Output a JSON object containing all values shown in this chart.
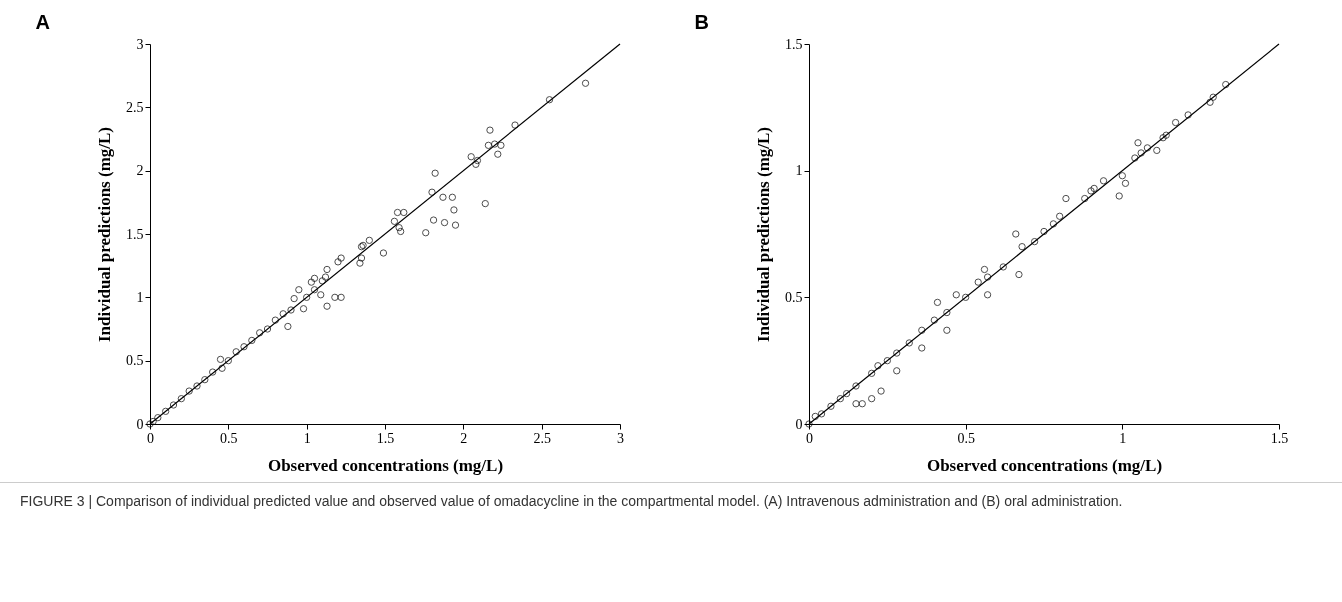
{
  "chart_data": [
    {
      "type": "scatter",
      "title": "A",
      "xlabel": "Observed concentrations (mg/L)",
      "ylabel": "Individual predictions (mg/L)",
      "xlim": [
        0,
        3
      ],
      "ylim": [
        0,
        3
      ],
      "xticks": [
        0,
        0.5,
        1,
        1.5,
        2,
        2.5,
        3
      ],
      "yticks": [
        0,
        0.5,
        1,
        1.5,
        2,
        2.5,
        3
      ],
      "annotations": [
        "FIGURE 3 | Comparison of individual predicted value and observed value of omadacycline in the compartmental model. (A) Intravenous administration and (B) oral administration."
      ],
      "series": [
        {
          "type": "scatter",
          "marker": "circle",
          "color": "#000000",
          "x": [
            2.78,
            2.55,
            2.33,
            2.17,
            2.16,
            2.2,
            2.24,
            2.22,
            2.05,
            2.09,
            2.08,
            2.14,
            1.82,
            1.8,
            1.87,
            1.93,
            1.94,
            1.95,
            1.88,
            1.81,
            1.76,
            1.58,
            1.62,
            1.56,
            1.59,
            1.6,
            1.49,
            1.4,
            1.36,
            1.35,
            1.35,
            1.34,
            1.22,
            1.2,
            1.13,
            1.12,
            1.1,
            1.05,
            1.03,
            1.22,
            1.18,
            1.13,
            1.09,
            0.95,
            0.92,
            0.98,
            0.88,
            0.9,
            0.85,
            0.8,
            0.75,
            0.7,
            0.65,
            0.6,
            0.55,
            0.5,
            0.45,
            0.46,
            0.4,
            0.35,
            0.3,
            0.25,
            0.2,
            0.15,
            0.1,
            0.05,
            0.02,
            0,
            1.0,
            1.05
          ],
          "values": [
            2.69,
            2.56,
            2.36,
            2.32,
            2.2,
            2.21,
            2.2,
            2.13,
            2.11,
            2.08,
            2.05,
            1.74,
            1.98,
            1.83,
            1.79,
            1.79,
            1.69,
            1.57,
            1.59,
            1.61,
            1.51,
            1.67,
            1.67,
            1.6,
            1.55,
            1.52,
            1.35,
            1.45,
            1.41,
            1.4,
            1.31,
            1.27,
            1.31,
            1.28,
            1.22,
            1.16,
            1.13,
            1.15,
            1.12,
            1.0,
            1.0,
            0.93,
            1.02,
            1.06,
            0.99,
            0.91,
            0.77,
            0.9,
            0.87,
            0.82,
            0.75,
            0.72,
            0.66,
            0.61,
            0.57,
            0.5,
            0.51,
            0.44,
            0.41,
            0.35,
            0.3,
            0.26,
            0.2,
            0.15,
            0.1,
            0.05,
            0.02,
            0,
            1.0,
            1.06
          ]
        },
        {
          "type": "line",
          "marker": "none",
          "color": "#000000",
          "x": [
            0,
            3
          ],
          "values": [
            0,
            3
          ]
        }
      ]
    },
    {
      "type": "scatter",
      "title": "B",
      "xlabel": "Observed concentrations (mg/L)",
      "ylabel": "Individual predictions (mg/L)",
      "xlim": [
        0,
        1.5
      ],
      "ylim": [
        0,
        1.5
      ],
      "xticks": [
        0,
        0.5,
        1,
        1.5
      ],
      "yticks": [
        0,
        0.5,
        1,
        1.5
      ],
      "series": [
        {
          "type": "scatter",
          "marker": "circle",
          "color": "#000000",
          "x": [
            1.33,
            1.29,
            1.28,
            1.21,
            1.17,
            1.14,
            1.13,
            1.11,
            1.08,
            1.05,
            1.04,
            1.06,
            1.0,
            1.01,
            0.99,
            0.94,
            0.9,
            0.91,
            0.88,
            0.82,
            0.8,
            0.78,
            0.75,
            0.72,
            0.68,
            0.66,
            0.67,
            0.62,
            0.57,
            0.56,
            0.57,
            0.54,
            0.5,
            0.47,
            0.44,
            0.41,
            0.44,
            0.4,
            0.36,
            0.36,
            0.32,
            0.28,
            0.25,
            0.28,
            0.22,
            0.2,
            0.23,
            0.2,
            0.17,
            0.15,
            0.15,
            0.12,
            0.1,
            0.07,
            0.04,
            0.02,
            0
          ],
          "values": [
            1.34,
            1.29,
            1.27,
            1.22,
            1.19,
            1.14,
            1.13,
            1.08,
            1.09,
            1.11,
            1.05,
            1.07,
            0.98,
            0.95,
            0.9,
            0.96,
            0.92,
            0.93,
            0.89,
            0.89,
            0.82,
            0.79,
            0.76,
            0.72,
            0.7,
            0.75,
            0.59,
            0.62,
            0.58,
            0.61,
            0.51,
            0.56,
            0.5,
            0.51,
            0.44,
            0.48,
            0.37,
            0.41,
            0.37,
            0.3,
            0.32,
            0.28,
            0.25,
            0.21,
            0.23,
            0.2,
            0.13,
            0.1,
            0.08,
            0.08,
            0.15,
            0.12,
            0.1,
            0.07,
            0.04,
            0.03,
            0
          ]
        },
        {
          "type": "line",
          "marker": "none",
          "color": "#000000",
          "x": [
            0,
            1.5
          ],
          "values": [
            0,
            1.5
          ]
        }
      ]
    }
  ]
}
